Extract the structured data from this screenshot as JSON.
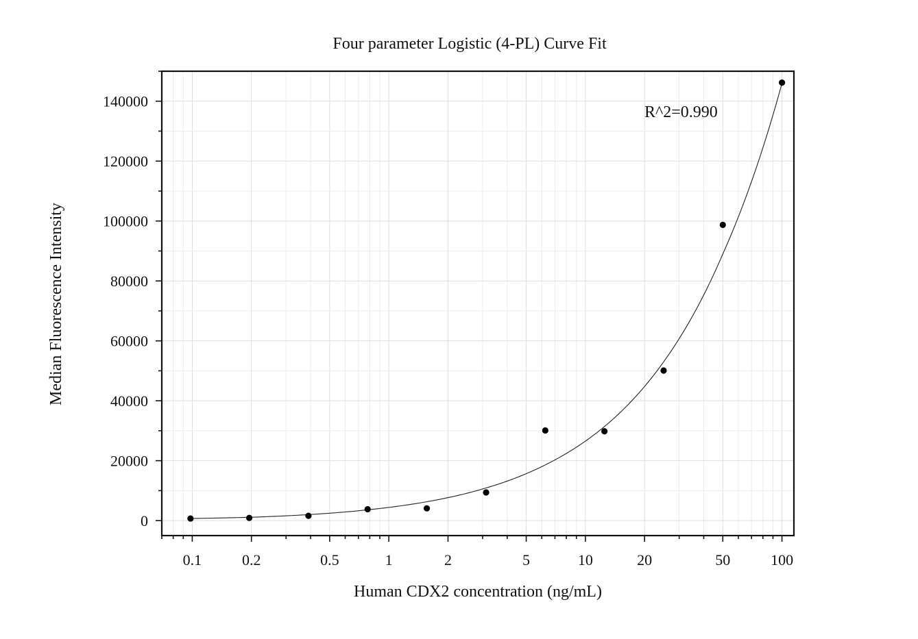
{
  "chart_data": {
    "type": "scatter",
    "title": "Four parameter Logistic (4-PL) Curve Fit",
    "xlabel": "Human CDX2 concentration (ng/mL)",
    "ylabel": "Median Fluorescence Intensity",
    "xscale": "log",
    "xlim": [
      0.07,
      115
    ],
    "ylim": [
      -5000,
      150000
    ],
    "grid": true,
    "x_ticks": [
      0.1,
      0.2,
      0.5,
      1,
      2,
      5,
      10,
      20,
      50,
      100
    ],
    "x_tick_labels": [
      "0.1",
      "0.2",
      "0.5",
      "1",
      "2",
      "5",
      "10",
      "20",
      "50",
      "100"
    ],
    "y_ticks": [
      0,
      20000,
      40000,
      60000,
      80000,
      100000,
      120000,
      140000
    ],
    "y_tick_labels": [
      "0",
      "20000",
      "40000",
      "60000",
      "80000",
      "100000",
      "120000",
      "140000"
    ],
    "annotation": "R^2=0.990",
    "series": [
      {
        "type": "scatter",
        "x": [
          0.098,
          0.195,
          0.39,
          0.78,
          1.56,
          3.125,
          6.25,
          12.5,
          25,
          50,
          100
        ],
        "y": [
          700,
          900,
          1600,
          3800,
          4100,
          9400,
          30100,
          29800,
          50100,
          98700,
          146200
        ]
      },
      {
        "type": "line",
        "x": [
          0.098,
          0.195,
          0.39,
          0.78,
          1.56,
          3.125,
          6.25,
          12.5,
          25,
          50,
          100
        ],
        "y": [
          700,
          1100,
          2000,
          3600,
          6300,
          10900,
          18600,
          31400,
          53000,
          89000,
          146000
        ]
      }
    ]
  }
}
